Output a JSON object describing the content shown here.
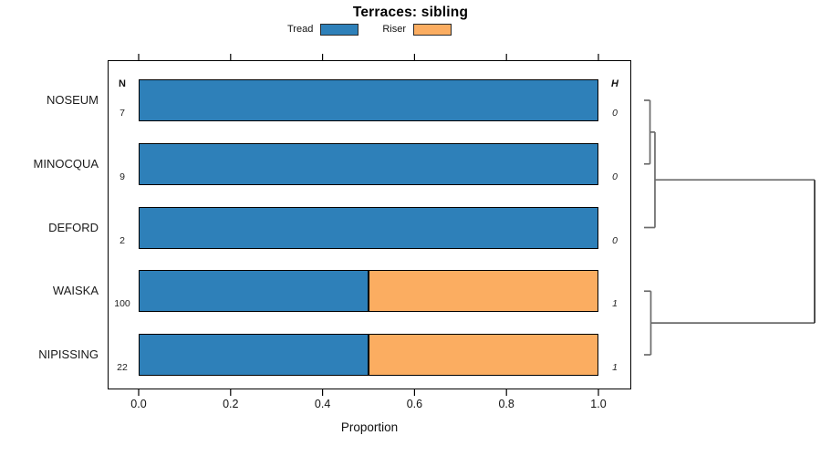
{
  "title": "Terraces: sibling",
  "legend": {
    "entries": [
      {
        "label": "Tread",
        "color": "#2E80B9"
      },
      {
        "label": "Riser",
        "color": "#FBAD61"
      }
    ]
  },
  "chart_data": {
    "type": "bar",
    "orientation": "horizontal",
    "stacked": true,
    "title": "Terraces: sibling",
    "xlabel": "Proportion",
    "xlim": [
      0.0,
      1.0
    ],
    "x_ticks": [
      0.0,
      0.2,
      0.4,
      0.6,
      0.8,
      1.0
    ],
    "x_tick_labels": [
      "0.0",
      "0.2",
      "0.4",
      "0.6",
      "0.8",
      "1.0"
    ],
    "mirrored_top_axis": true,
    "grid": false,
    "legend_position": "top-center",
    "categories": [
      "NOSEUM",
      "MINOCQUA",
      "DEFORD",
      "WAISKA",
      "NIPISSING"
    ],
    "series": [
      {
        "name": "Tread",
        "color": "#2E80B9",
        "values": [
          1.0,
          1.0,
          1.0,
          0.5,
          0.5
        ]
      },
      {
        "name": "Riser",
        "color": "#FBAD61",
        "values": [
          0.0,
          0.0,
          0.0,
          0.5,
          0.5
        ]
      }
    ],
    "n_column": {
      "header": "N",
      "values": [
        "7",
        "9",
        "2",
        "100",
        "22"
      ]
    },
    "h_column": {
      "header": "H",
      "values": [
        "0",
        "0",
        "0",
        "1",
        "1"
      ]
    },
    "dendrogram": {
      "line_color": "#6b6b6b",
      "root_color": "#161616",
      "merges": [
        {
          "a": "leaf:0",
          "b": "leaf:1",
          "height": 0.035
        },
        {
          "a": "merge:0",
          "b": "leaf:2",
          "height": 0.064
        },
        {
          "a": "leaf:3",
          "b": "leaf:4",
          "height": 0.04
        },
        {
          "a": "merge:1",
          "b": "merge:2",
          "height": 1.0
        }
      ]
    }
  }
}
